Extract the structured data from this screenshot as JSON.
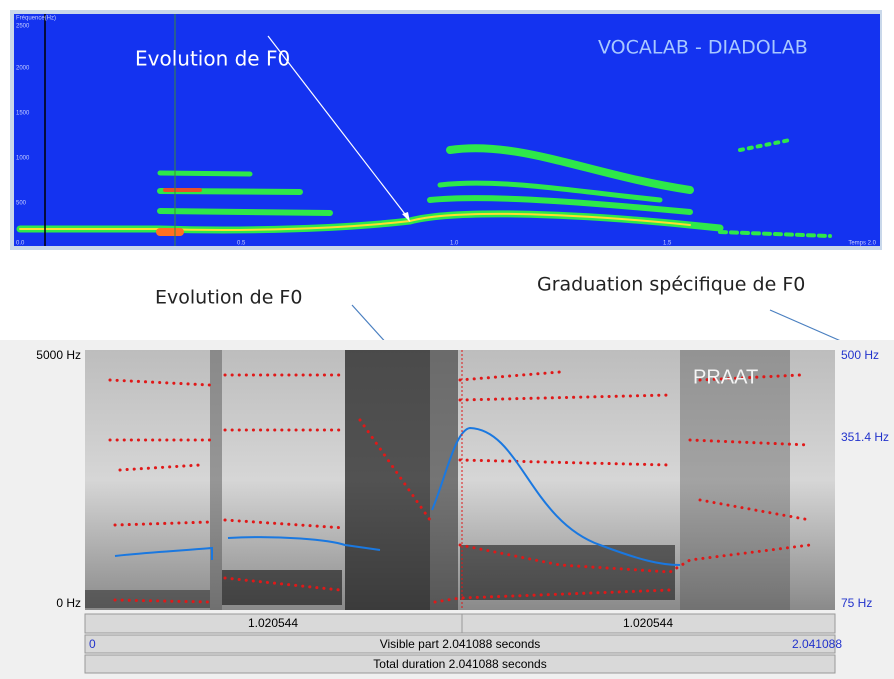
{
  "top_panel": {
    "brand": "VOCALAB - DIADOLAB",
    "annotation": "Evolution de F0",
    "y_axis_title": "Fréquence(Hz)",
    "y_ticks": [
      "2500",
      "2000",
      "1500",
      "1000",
      "500",
      "0.0"
    ],
    "x_ticks": [
      "0.5",
      "1.0",
      "1.5"
    ],
    "x_axis_title": "Temps 2.0"
  },
  "bottom_panel": {
    "annotation": "Evolution de F0",
    "graduation_note": "Graduation spécifique de F0",
    "brand": "PRAAT",
    "left_axis": {
      "top": "5000 Hz",
      "bottom": "0 Hz"
    },
    "right_axis": {
      "top": "500 Hz",
      "middle": "351.4 Hz",
      "bottom": "75 Hz"
    },
    "ruler": {
      "left_half": "1.020544",
      "right_half": "1.020544",
      "start": "0",
      "visible": "Visible part 2.041088 seconds",
      "end": "2.041088",
      "total": "Total duration 2.041088 seconds"
    }
  }
}
